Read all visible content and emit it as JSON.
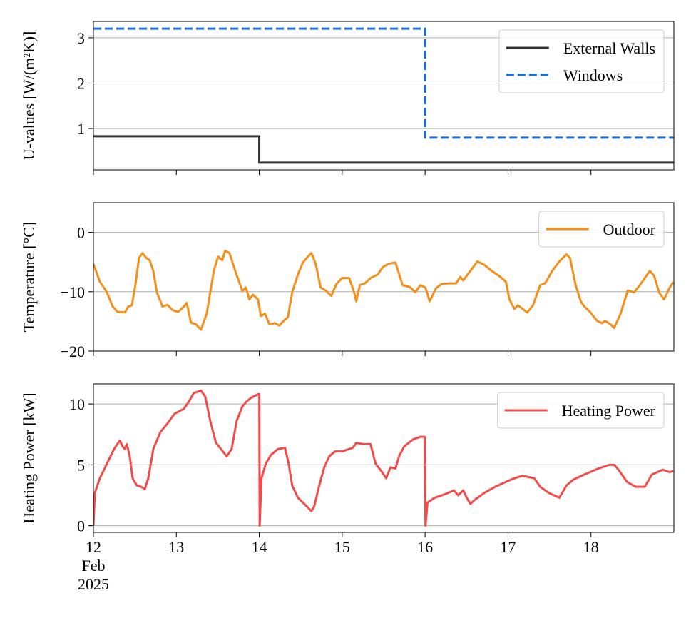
{
  "chart_data": [
    {
      "type": "line",
      "ylabel": "U-values [W/(m²K)]",
      "xlim": [
        12,
        19
      ],
      "xticks": [
        12,
        13,
        14,
        15,
        16,
        17,
        18
      ],
      "show_xtick_labels": false,
      "ylim": [
        0.09,
        3.36
      ],
      "yticks": [
        1,
        2,
        3
      ],
      "grid": true,
      "legend": "upper right",
      "series": [
        {
          "name": "External Walls",
          "color": "#333333",
          "linestyle": "solid",
          "x": [
            12,
            14,
            14,
            19
          ],
          "values": [
            0.83,
            0.83,
            0.25,
            0.25
          ]
        },
        {
          "name": "Windows",
          "color": "#1a6fe0",
          "linestyle": "dashed",
          "x": [
            12,
            16,
            16,
            19
          ],
          "values": [
            3.2,
            3.2,
            0.8,
            0.8
          ]
        }
      ]
    },
    {
      "type": "line",
      "ylabel": "Temperature [°C]",
      "xlim": [
        12,
        19
      ],
      "xticks": [
        12,
        13,
        14,
        15,
        16,
        17,
        18
      ],
      "show_xtick_labels": false,
      "ylim": [
        -20,
        5
      ],
      "yticks": [
        {
          "value": -20,
          "label": "−20"
        },
        {
          "value": -10,
          "label": "−10"
        },
        0
      ],
      "grid": true,
      "legend": "upper right",
      "series": [
        {
          "name": "Outdoor",
          "color": "#f58f1a",
          "linestyle": "solid",
          "x": [
            12.0,
            12.077,
            12.163,
            12.232,
            12.292,
            12.378,
            12.421,
            12.464,
            12.506,
            12.55,
            12.593,
            12.636,
            12.679,
            12.722,
            12.765,
            12.833,
            12.893,
            12.954,
            13.022,
            13.091,
            13.125,
            13.177,
            13.237,
            13.297,
            13.366,
            13.409,
            13.452,
            13.503,
            13.555,
            13.589,
            13.641,
            13.71,
            13.796,
            13.838,
            13.881,
            13.924,
            13.985,
            14.019,
            14.07,
            14.122,
            14.191,
            14.242,
            14.294,
            14.345,
            14.397,
            14.466,
            14.526,
            14.586,
            14.629,
            14.68,
            14.741,
            14.801,
            14.869,
            14.93,
            14.998,
            15.084,
            15.144,
            15.17,
            15.213,
            15.273,
            15.342,
            15.428,
            15.488,
            15.557,
            15.643,
            15.729,
            15.814,
            15.883,
            15.943,
            16.003,
            16.055,
            16.132,
            16.201,
            16.287,
            16.373,
            16.424,
            16.459,
            16.545,
            16.631,
            16.716,
            16.802,
            16.888,
            16.974,
            17.017,
            17.077,
            17.12,
            17.232,
            17.301,
            17.387,
            17.447,
            17.533,
            17.619,
            17.704,
            17.747,
            17.816,
            17.876,
            17.919,
            17.988,
            18.074,
            18.134,
            18.168,
            18.237,
            18.28,
            18.357,
            18.443,
            18.521,
            18.589,
            18.649,
            18.71,
            18.761,
            18.821,
            18.881,
            18.95,
            18.993
          ],
          "values": [
            -5.3,
            -8.3,
            -10.1,
            -12.5,
            -13.4,
            -13.5,
            -12.5,
            -12.3,
            -8.9,
            -4.3,
            -3.5,
            -4.3,
            -4.7,
            -6.5,
            -10.1,
            -12.5,
            -12.2,
            -13.1,
            -13.4,
            -12.5,
            -11.9,
            -15.2,
            -15.5,
            -16.4,
            -13.7,
            -10.1,
            -6.5,
            -4.1,
            -4.7,
            -3.1,
            -3.5,
            -6.5,
            -9.9,
            -9.3,
            -11.3,
            -10.5,
            -11.3,
            -14.1,
            -13.7,
            -15.5,
            -15.3,
            -15.7,
            -14.9,
            -14.3,
            -10.1,
            -7.1,
            -5.1,
            -4.1,
            -3.5,
            -5.3,
            -9.3,
            -9.8,
            -10.7,
            -8.7,
            -7.7,
            -7.7,
            -10.1,
            -11.6,
            -8.9,
            -8.6,
            -7.7,
            -7.1,
            -5.9,
            -5.3,
            -5.1,
            -8.9,
            -9.2,
            -10.1,
            -8.9,
            -9.3,
            -11.6,
            -9.4,
            -8.7,
            -8.6,
            -8.6,
            -7.5,
            -8.1,
            -6.5,
            -4.9,
            -5.5,
            -6.5,
            -7.3,
            -8.3,
            -11.3,
            -12.9,
            -12.3,
            -13.5,
            -12.3,
            -8.9,
            -8.6,
            -6.5,
            -4.9,
            -3.7,
            -4.3,
            -8.9,
            -11.6,
            -12.5,
            -13.4,
            -14.9,
            -15.3,
            -14.9,
            -15.5,
            -16.1,
            -13.7,
            -9.8,
            -10.1,
            -8.9,
            -7.7,
            -6.5,
            -7.3,
            -10.1,
            -11.3,
            -9.3,
            -8.4
          ]
        }
      ]
    },
    {
      "type": "line",
      "ylabel": "Heating Power [kW]",
      "xlim": [
        12,
        19
      ],
      "xticks": [
        {
          "value": 12,
          "label": "12\nFeb\n2025"
        },
        13,
        14,
        15,
        16,
        17,
        18
      ],
      "show_xtick_labels": true,
      "ylim": [
        -0.55,
        11.65
      ],
      "yticks": [
        0,
        5,
        10
      ],
      "grid": true,
      "legend": "upper right",
      "series": [
        {
          "name": "Heating Power",
          "color": "#f44a4a",
          "linestyle": "solid",
          "x": [
            12.0,
            12.017,
            12.077,
            12.163,
            12.249,
            12.318,
            12.352,
            12.378,
            12.404,
            12.438,
            12.473,
            12.524,
            12.576,
            12.619,
            12.662,
            12.722,
            12.808,
            12.893,
            12.979,
            13.091,
            13.151,
            13.211,
            13.297,
            13.349,
            13.409,
            13.478,
            13.538,
            13.607,
            13.667,
            13.727,
            13.796,
            13.847,
            13.899,
            13.985,
            14.0,
            14.005,
            14.027,
            14.079,
            14.139,
            14.225,
            14.311,
            14.354,
            14.397,
            14.466,
            14.526,
            14.586,
            14.629,
            14.663,
            14.723,
            14.784,
            14.844,
            14.912,
            14.998,
            15.084,
            15.127,
            15.17,
            15.256,
            15.342,
            15.402,
            15.471,
            15.531,
            15.582,
            15.643,
            15.686,
            15.746,
            15.857,
            15.943,
            15.995,
            16.005,
            16.029,
            16.115,
            16.244,
            16.347,
            16.399,
            16.459,
            16.502,
            16.545,
            16.613,
            16.716,
            16.845,
            16.974,
            17.077,
            17.172,
            17.318,
            17.387,
            17.49,
            17.619,
            17.704,
            17.79,
            17.919,
            18.091,
            18.22,
            18.28,
            18.332,
            18.435,
            18.538,
            18.649,
            18.735,
            18.864,
            18.95,
            18.993
          ],
          "values": [
            0,
            2.7,
            3.9,
            5.1,
            6.3,
            7.0,
            6.5,
            6.3,
            6.7,
            5.7,
            3.9,
            3.3,
            3.2,
            3.0,
            3.9,
            6.3,
            7.7,
            8.4,
            9.2,
            9.6,
            10.2,
            10.9,
            11.1,
            10.6,
            8.6,
            6.8,
            6.3,
            5.7,
            6.3,
            8.6,
            9.8,
            10.2,
            10.5,
            10.8,
            10.8,
            0,
            3.9,
            5.1,
            5.8,
            6.3,
            6.4,
            5.1,
            3.3,
            2.3,
            1.9,
            1.5,
            1.2,
            1.6,
            3.3,
            4.8,
            5.7,
            6.1,
            6.1,
            6.3,
            6.4,
            6.8,
            6.7,
            6.7,
            5.1,
            4.5,
            3.9,
            4.8,
            4.7,
            5.7,
            6.5,
            7.1,
            7.3,
            7.3,
            0,
            1.9,
            2.3,
            2.6,
            2.9,
            2.5,
            2.9,
            2.3,
            1.8,
            2.2,
            2.7,
            3.2,
            3.6,
            3.9,
            4.1,
            3.9,
            3.2,
            2.7,
            2.3,
            3.3,
            3.8,
            4.2,
            4.7,
            5.0,
            5.0,
            4.6,
            3.6,
            3.2,
            3.2,
            4.2,
            4.6,
            4.4,
            4.5
          ]
        }
      ]
    }
  ]
}
